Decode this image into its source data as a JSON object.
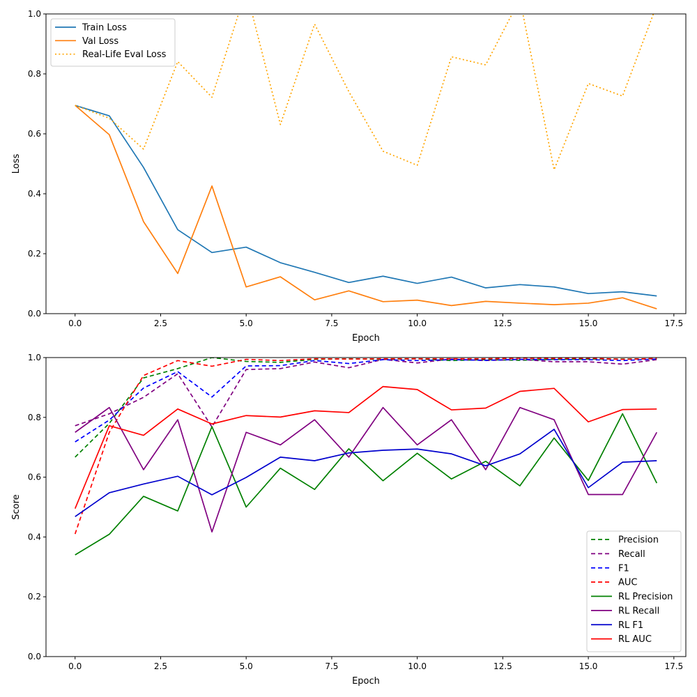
{
  "chart_data": [
    {
      "type": "line",
      "xlabel": "Epoch",
      "ylabel": "Loss",
      "xlim": [
        -0.85,
        17.85
      ],
      "ylim": [
        0,
        1.0
      ],
      "xticks": [
        0.0,
        2.5,
        5.0,
        7.5,
        10.0,
        12.5,
        15.0,
        17.5
      ],
      "yticks": [
        0.0,
        0.2,
        0.4,
        0.6,
        0.8,
        1.0
      ],
      "xtick_labels": [
        "0.0",
        "2.5",
        "5.0",
        "7.5",
        "10.0",
        "12.5",
        "15.0",
        "17.5"
      ],
      "ytick_labels": [
        "0.0",
        "0.2",
        "0.4",
        "0.6",
        "0.8",
        "1.0"
      ],
      "grid": false,
      "legend_position": "top-left",
      "x": [
        0,
        1,
        2,
        3,
        4,
        5,
        6,
        7,
        8,
        9,
        10,
        11,
        12,
        13,
        14,
        15,
        16,
        17
      ],
      "series": [
        {
          "name": "Train Loss",
          "color": "#1f77b4",
          "style": "solid",
          "values": [
            0.695,
            0.66,
            0.488,
            0.28,
            0.204,
            0.222,
            0.17,
            0.138,
            0.104,
            0.125,
            0.101,
            0.122,
            0.086,
            0.097,
            0.089,
            0.067,
            0.073,
            0.059
          ]
        },
        {
          "name": "Val Loss",
          "color": "#ff7f0e",
          "style": "solid",
          "values": [
            0.695,
            0.597,
            0.307,
            0.134,
            0.426,
            0.089,
            0.123,
            0.046,
            0.076,
            0.04,
            0.045,
            0.027,
            0.041,
            0.035,
            0.03,
            0.035,
            0.053,
            0.016
          ]
        },
        {
          "name": "Real-Life Eval Loss",
          "color": "#ffa500",
          "style": "dotted",
          "values": [
            0.695,
            0.652,
            0.549,
            0.841,
            0.722,
            1.08,
            0.631,
            0.966,
            0.741,
            0.542,
            0.495,
            0.857,
            0.83,
            1.05,
            0.48,
            0.768,
            0.726,
            1.03
          ]
        }
      ]
    },
    {
      "type": "line",
      "xlabel": "Epoch",
      "ylabel": "Score",
      "xlim": [
        -0.85,
        17.85
      ],
      "ylim": [
        0,
        1.0
      ],
      "xticks": [
        0.0,
        2.5,
        5.0,
        7.5,
        10.0,
        12.5,
        15.0,
        17.5
      ],
      "yticks": [
        0.0,
        0.2,
        0.4,
        0.6,
        0.8,
        1.0
      ],
      "xtick_labels": [
        "0.0",
        "2.5",
        "5.0",
        "7.5",
        "10.0",
        "12.5",
        "15.0",
        "17.5"
      ],
      "ytick_labels": [
        "0.0",
        "0.2",
        "0.4",
        "0.6",
        "0.8",
        "1.0"
      ],
      "grid": false,
      "legend_position": "bottom-right",
      "x": [
        0,
        1,
        2,
        3,
        4,
        5,
        6,
        7,
        8,
        9,
        10,
        11,
        12,
        13,
        14,
        15,
        16,
        17
      ],
      "series": [
        {
          "name": "Precision",
          "color": "#008000",
          "style": "dashed",
          "values": [
            0.667,
            0.78,
            0.932,
            0.963,
            1.0,
            0.987,
            0.984,
            0.994,
            0.996,
            0.994,
            0.996,
            0.99,
            0.993,
            0.991,
            0.994,
            0.995,
            0.995,
            0.996
          ]
        },
        {
          "name": "Recall",
          "color": "#800080",
          "style": "dashed",
          "values": [
            0.772,
            0.812,
            0.867,
            0.946,
            0.768,
            0.96,
            0.963,
            0.985,
            0.966,
            0.994,
            0.982,
            0.995,
            0.99,
            0.994,
            0.986,
            0.986,
            0.978,
            0.993
          ]
        },
        {
          "name": "F1",
          "color": "#0000ff",
          "style": "dashed",
          "values": [
            0.718,
            0.791,
            0.898,
            0.953,
            0.868,
            0.972,
            0.973,
            0.99,
            0.98,
            0.993,
            0.99,
            0.993,
            0.991,
            0.994,
            0.993,
            0.993,
            0.99,
            0.995
          ]
        },
        {
          "name": "AUC",
          "color": "#ff0000",
          "style": "dashed",
          "values": [
            0.41,
            0.75,
            0.94,
            0.99,
            0.971,
            0.994,
            0.99,
            0.996,
            0.995,
            0.996,
            0.996,
            0.996,
            0.996,
            0.998,
            0.997,
            0.998,
            0.994,
            0.997
          ]
        },
        {
          "name": "RL Precision",
          "color": "#008000",
          "style": "solid",
          "values": [
            0.34,
            0.409,
            0.536,
            0.487,
            0.769,
            0.5,
            0.63,
            0.559,
            0.695,
            0.588,
            0.68,
            0.594,
            0.653,
            0.571,
            0.731,
            0.589,
            0.812,
            0.58
          ]
        },
        {
          "name": "RL Recall",
          "color": "#800080",
          "style": "solid",
          "values": [
            0.75,
            0.833,
            0.625,
            0.792,
            0.417,
            0.75,
            0.708,
            0.792,
            0.667,
            0.833,
            0.708,
            0.792,
            0.625,
            0.833,
            0.792,
            0.542,
            0.542,
            0.75
          ]
        },
        {
          "name": "RL F1",
          "color": "#0000cd",
          "style": "solid",
          "values": [
            0.468,
            0.548,
            0.577,
            0.603,
            0.541,
            0.599,
            0.667,
            0.655,
            0.681,
            0.69,
            0.694,
            0.678,
            0.638,
            0.678,
            0.76,
            0.565,
            0.65,
            0.655
          ]
        },
        {
          "name": "RL AUC",
          "color": "#ff0000",
          "style": "solid",
          "values": [
            0.495,
            0.772,
            0.74,
            0.828,
            0.778,
            0.806,
            0.801,
            0.822,
            0.816,
            0.903,
            0.893,
            0.825,
            0.831,
            0.887,
            0.897,
            0.785,
            0.826,
            0.828
          ]
        }
      ]
    }
  ]
}
